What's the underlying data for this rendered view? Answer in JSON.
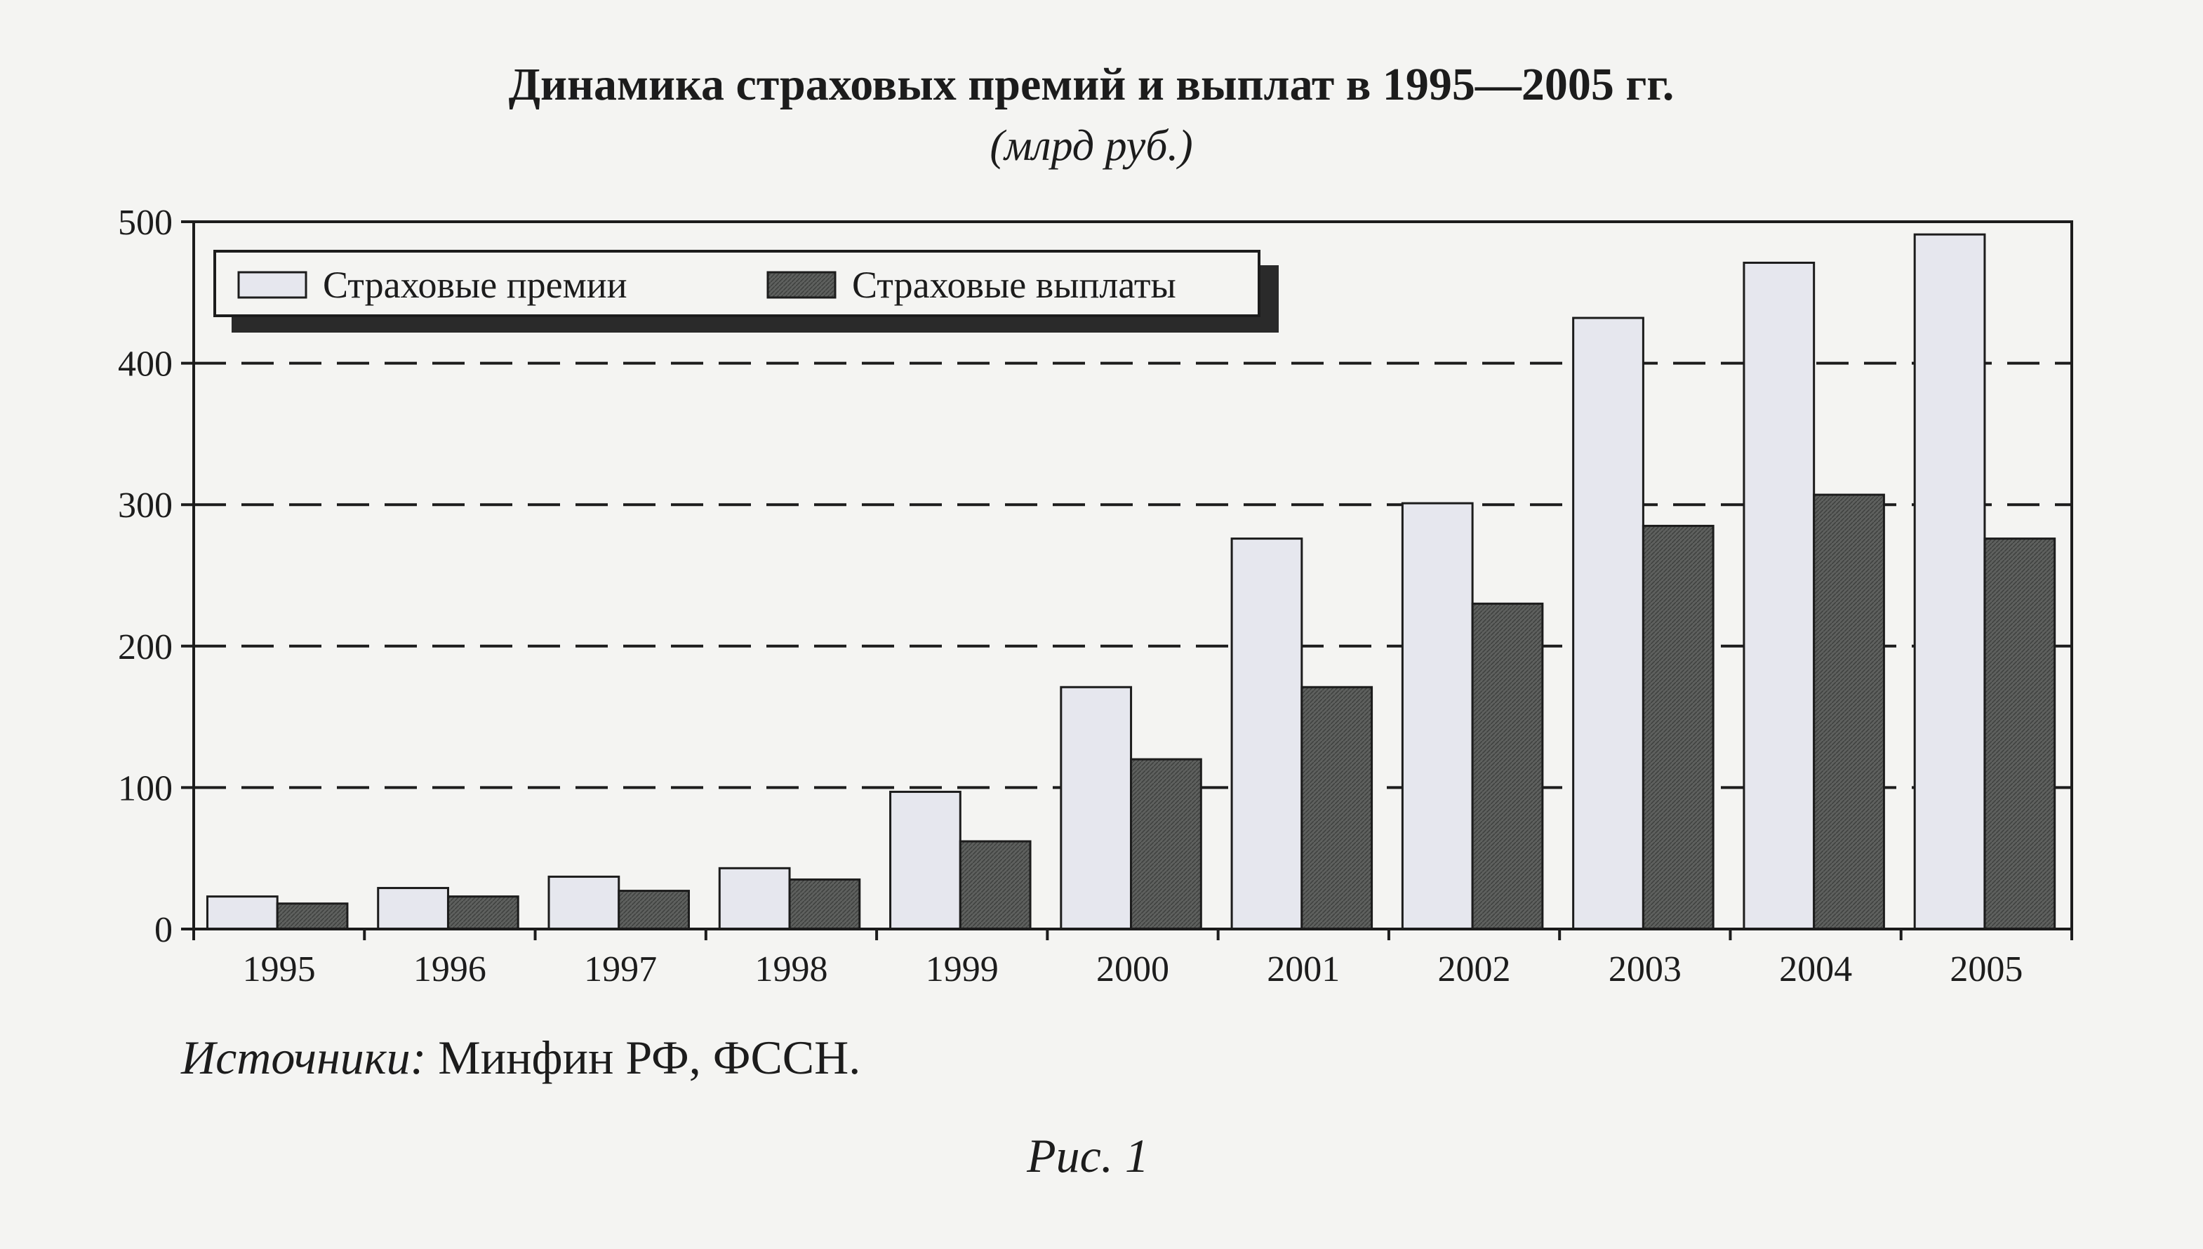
{
  "chart_data": {
    "type": "bar",
    "title": "Динамика страховых премий и выплат в 1995—2005 гг.",
    "subtitle": "(млрд руб.)",
    "categories": [
      "1995",
      "1996",
      "1997",
      "1998",
      "1999",
      "2000",
      "2001",
      "2002",
      "2003",
      "2004",
      "2005"
    ],
    "series": [
      {
        "name": "Страховые премии",
        "color": "#e6e7ee",
        "values": [
          23,
          29,
          37,
          43,
          97,
          171,
          276,
          301,
          432,
          471,
          491
        ]
      },
      {
        "name": "Страховые выплаты",
        "color": "#5a5c5a",
        "values": [
          18,
          23,
          27,
          35,
          62,
          120,
          171,
          230,
          285,
          307,
          276
        ]
      }
    ],
    "ylim": [
      0,
      500
    ],
    "yticks": [
      0,
      100,
      200,
      300,
      400,
      500
    ],
    "grid": "horizontal dashed",
    "legend_position": "top-left"
  },
  "source": {
    "label": "Источники:",
    "text": " Минфин РФ, ФССН."
  },
  "figure_label": "Рис. 1"
}
